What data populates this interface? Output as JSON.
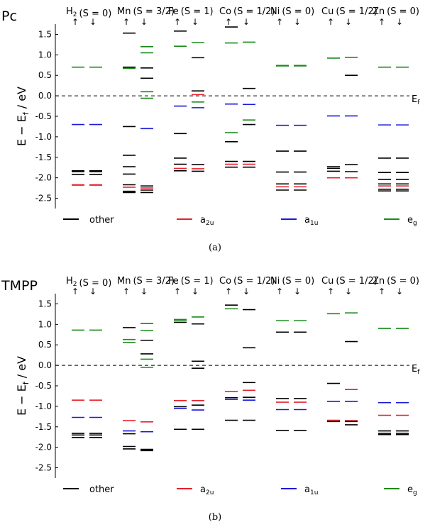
{
  "colors": {
    "other": "#000000",
    "a2u": "#e8202a",
    "a1u": "#1a1ad8",
    "eg": "#1a8a1a"
  },
  "legend": [
    {
      "key": "other",
      "label": "other"
    },
    {
      "key": "a2u",
      "label": "a",
      "sub": "2u"
    },
    {
      "key": "a1u",
      "label": "a",
      "sub": "1u"
    },
    {
      "key": "eg",
      "label": "e",
      "sub": "g"
    }
  ],
  "spin_up": "↑",
  "spin_down": "↓",
  "ef_label": "E",
  "ef_sub": "f",
  "chart_data": [
    {
      "type": "energy-level-diagram",
      "title": "Pc",
      "caption": "(a)",
      "ylabel": "E − E_f / eV",
      "ylim": [
        -2.75,
        1.75
      ],
      "yticks": [
        "-2.5",
        "-2.0",
        "-1.5",
        "-1.0",
        "-0.5",
        "0.0",
        "0.5",
        "1.0",
        "1.5"
      ],
      "fermi_level": 0.0,
      "columns": [
        {
          "metal": "H",
          "metal_sub": "2",
          "spin_label": "S = 0",
          "up": [
            [
              0.7,
              "eg"
            ],
            [
              -0.7,
              "a1u"
            ],
            [
              -1.83,
              "other"
            ],
            [
              -1.85,
              "other"
            ],
            [
              -1.92,
              "other"
            ],
            [
              -2.17,
              "a2u"
            ],
            [
              -2.18,
              "a2u"
            ]
          ],
          "down": [
            [
              0.7,
              "eg"
            ],
            [
              -0.7,
              "a1u"
            ],
            [
              -1.83,
              "other"
            ],
            [
              -1.85,
              "other"
            ],
            [
              -1.92,
              "other"
            ],
            [
              -2.17,
              "a2u"
            ],
            [
              -2.18,
              "a2u"
            ]
          ]
        },
        {
          "metal": "Mn",
          "spin_label": "S = 3/2",
          "up": [
            [
              1.53,
              "other"
            ],
            [
              0.7,
              "other"
            ],
            [
              0.67,
              "eg"
            ],
            [
              -0.75,
              "other"
            ],
            [
              -1.45,
              "other"
            ],
            [
              -1.73,
              "other"
            ],
            [
              -1.91,
              "other"
            ],
            [
              -2.17,
              "other"
            ],
            [
              -2.23,
              "a2u"
            ],
            [
              -2.33,
              "other"
            ],
            [
              -2.36,
              "other"
            ]
          ],
          "down": [
            [
              1.2,
              "eg"
            ],
            [
              1.05,
              "eg"
            ],
            [
              0.68,
              "other"
            ],
            [
              0.43,
              "other"
            ],
            [
              0.1,
              "eg"
            ],
            [
              -0.06,
              "eg"
            ],
            [
              -0.8,
              "a1u"
            ],
            [
              -2.2,
              "other"
            ],
            [
              -2.25,
              "a2u"
            ],
            [
              -2.3,
              "other"
            ],
            [
              -2.36,
              "other"
            ]
          ]
        },
        {
          "metal": "Fe",
          "spin_label": "S = 1",
          "up": [
            [
              1.58,
              "other"
            ],
            [
              1.21,
              "eg"
            ],
            [
              -0.25,
              "a1u"
            ],
            [
              -0.92,
              "other"
            ],
            [
              -1.52,
              "other"
            ],
            [
              -1.67,
              "other"
            ],
            [
              -1.77,
              "a2u"
            ],
            [
              -1.83,
              "other"
            ]
          ],
          "down": [
            [
              1.3,
              "eg"
            ],
            [
              0.93,
              "other"
            ],
            [
              0.12,
              "other"
            ],
            [
              0.03,
              "a2u"
            ],
            [
              -0.15,
              "eg"
            ],
            [
              -0.29,
              "a1u"
            ],
            [
              -1.68,
              "other"
            ],
            [
              -1.78,
              "a2u"
            ],
            [
              -1.84,
              "other"
            ]
          ]
        },
        {
          "metal": "Co",
          "spin_label": "S = 1/2",
          "up": [
            [
              1.68,
              "other"
            ],
            [
              1.29,
              "eg"
            ],
            [
              -0.2,
              "a1u"
            ],
            [
              -0.9,
              "eg"
            ],
            [
              -1.12,
              "other"
            ],
            [
              -1.6,
              "other"
            ],
            [
              -1.67,
              "a2u"
            ],
            [
              -1.74,
              "other"
            ]
          ],
          "down": [
            [
              1.31,
              "eg"
            ],
            [
              0.18,
              "other"
            ],
            [
              -0.21,
              "a1u"
            ],
            [
              -0.59,
              "eg"
            ],
            [
              -0.7,
              "other"
            ],
            [
              -1.6,
              "other"
            ],
            [
              -1.67,
              "a2u"
            ],
            [
              -1.74,
              "other"
            ]
          ]
        },
        {
          "metal": "Ni",
          "spin_label": "S = 0",
          "up": [
            [
              0.74,
              "eg"
            ],
            [
              0.73,
              "eg"
            ],
            [
              -0.72,
              "a1u"
            ],
            [
              -1.35,
              "other"
            ],
            [
              -1.86,
              "other"
            ],
            [
              -2.15,
              "other"
            ],
            [
              -2.22,
              "a2u"
            ],
            [
              -2.3,
              "other"
            ]
          ],
          "down": [
            [
              0.74,
              "eg"
            ],
            [
              0.73,
              "eg"
            ],
            [
              -0.72,
              "a1u"
            ],
            [
              -1.35,
              "other"
            ],
            [
              -1.86,
              "other"
            ],
            [
              -2.15,
              "other"
            ],
            [
              -2.22,
              "a2u"
            ],
            [
              -2.3,
              "other"
            ]
          ]
        },
        {
          "metal": "Cu",
          "spin_label": "S = 1/2",
          "up": [
            [
              0.92,
              "eg"
            ],
            [
              -0.49,
              "a1u"
            ],
            [
              -1.73,
              "other"
            ],
            [
              -1.77,
              "other"
            ],
            [
              -1.84,
              "other"
            ],
            [
              -2.0,
              "a2u"
            ]
          ],
          "down": [
            [
              0.94,
              "eg"
            ],
            [
              0.5,
              "other"
            ],
            [
              -0.49,
              "a1u"
            ],
            [
              -1.68,
              "other"
            ],
            [
              -1.85,
              "other"
            ],
            [
              -2.0,
              "a2u"
            ]
          ]
        },
        {
          "metal": "Zn",
          "spin_label": "S = 0",
          "up": [
            [
              0.7,
              "eg"
            ],
            [
              -0.71,
              "a1u"
            ],
            [
              -1.52,
              "other"
            ],
            [
              -1.87,
              "other"
            ],
            [
              -2.04,
              "other"
            ],
            [
              -2.15,
              "other"
            ],
            [
              -2.2,
              "a2u"
            ],
            [
              -2.28,
              "other"
            ],
            [
              -2.32,
              "other"
            ]
          ],
          "down": [
            [
              0.7,
              "eg"
            ],
            [
              -0.71,
              "a1u"
            ],
            [
              -1.52,
              "other"
            ],
            [
              -1.87,
              "other"
            ],
            [
              -2.04,
              "other"
            ],
            [
              -2.15,
              "other"
            ],
            [
              -2.2,
              "a2u"
            ],
            [
              -2.28,
              "other"
            ],
            [
              -2.32,
              "other"
            ]
          ]
        }
      ]
    },
    {
      "type": "energy-level-diagram",
      "title": "TMPP",
      "caption": "(b)",
      "ylabel": "E − E_f / eV",
      "ylim": [
        -2.75,
        1.75
      ],
      "yticks": [
        "-2.5",
        "-2.0",
        "-1.5",
        "-1.0",
        "-0.5",
        "0.0",
        "0.5",
        "1.0",
        "1.5"
      ],
      "fermi_level": 0.0,
      "columns": [
        {
          "metal": "H",
          "metal_sub": "2",
          "spin_label": "S = 0",
          "up": [
            [
              0.86,
              "eg"
            ],
            [
              -0.85,
              "a2u"
            ],
            [
              -1.27,
              "a1u"
            ],
            [
              -1.66,
              "other"
            ],
            [
              -1.7,
              "other"
            ],
            [
              -1.76,
              "other"
            ]
          ],
          "down": [
            [
              0.86,
              "eg"
            ],
            [
              -0.85,
              "a2u"
            ],
            [
              -1.27,
              "a1u"
            ],
            [
              -1.66,
              "other"
            ],
            [
              -1.7,
              "other"
            ],
            [
              -1.76,
              "other"
            ]
          ]
        },
        {
          "metal": "Mn",
          "spin_label": "S = 3/2",
          "up": [
            [
              0.92,
              "other"
            ],
            [
              0.63,
              "eg"
            ],
            [
              0.56,
              "eg"
            ],
            [
              -1.35,
              "a2u"
            ],
            [
              -1.6,
              "a1u"
            ],
            [
              -1.67,
              "other"
            ],
            [
              -1.98,
              "other"
            ],
            [
              -2.04,
              "other"
            ]
          ],
          "down": [
            [
              1.02,
              "eg"
            ],
            [
              0.85,
              "eg"
            ],
            [
              0.61,
              "other"
            ],
            [
              0.28,
              "other"
            ],
            [
              0.15,
              "eg"
            ],
            [
              -0.05,
              "eg"
            ],
            [
              -1.38,
              "a2u"
            ],
            [
              -1.62,
              "a1u"
            ],
            [
              -2.05,
              "other"
            ],
            [
              -2.08,
              "other"
            ]
          ]
        },
        {
          "metal": "Fe",
          "spin_label": "S = 1",
          "up": [
            [
              1.12,
              "eg"
            ],
            [
              1.1,
              "eg"
            ],
            [
              1.05,
              "other"
            ],
            [
              -0.86,
              "a2u"
            ],
            [
              -1.01,
              "other"
            ],
            [
              -1.05,
              "a1u"
            ],
            [
              -1.56,
              "other"
            ]
          ],
          "down": [
            [
              1.18,
              "eg"
            ],
            [
              1.01,
              "other"
            ],
            [
              0.1,
              "other"
            ],
            [
              -0.07,
              "other"
            ],
            [
              -0.86,
              "a2u"
            ],
            [
              -0.97,
              "other"
            ],
            [
              -1.09,
              "a1u"
            ],
            [
              -1.56,
              "other"
            ]
          ]
        },
        {
          "metal": "Co",
          "spin_label": "S = 1/2",
          "up": [
            [
              1.47,
              "other"
            ],
            [
              1.38,
              "eg"
            ],
            [
              -0.64,
              "a2u"
            ],
            [
              -0.79,
              "other"
            ],
            [
              -0.83,
              "a1u"
            ],
            [
              -1.34,
              "other"
            ]
          ],
          "down": [
            [
              1.36,
              "other"
            ],
            [
              0.43,
              "other"
            ],
            [
              -0.42,
              "other"
            ],
            [
              -0.61,
              "a2u"
            ],
            [
              -0.78,
              "other"
            ],
            [
              -0.85,
              "a1u"
            ],
            [
              -1.34,
              "other"
            ]
          ]
        },
        {
          "metal": "Ni",
          "spin_label": "S = 0",
          "up": [
            [
              1.09,
              "eg"
            ],
            [
              0.81,
              "other"
            ],
            [
              -0.81,
              "other"
            ],
            [
              -0.9,
              "a2u"
            ],
            [
              -1.08,
              "a1u"
            ],
            [
              -1.59,
              "other"
            ]
          ],
          "down": [
            [
              1.09,
              "eg"
            ],
            [
              0.81,
              "other"
            ],
            [
              -0.81,
              "other"
            ],
            [
              -0.9,
              "a2u"
            ],
            [
              -1.08,
              "a1u"
            ],
            [
              -1.59,
              "other"
            ]
          ]
        },
        {
          "metal": "Cu",
          "spin_label": "S = 1/2",
          "up": [
            [
              1.26,
              "eg"
            ],
            [
              -0.44,
              "other"
            ],
            [
              -0.88,
              "a1u"
            ],
            [
              -1.34,
              "a2u"
            ],
            [
              -1.37,
              "other"
            ]
          ],
          "down": [
            [
              1.28,
              "eg"
            ],
            [
              0.58,
              "other"
            ],
            [
              -0.59,
              "a2u"
            ],
            [
              -0.88,
              "a1u"
            ],
            [
              -1.35,
              "a2u"
            ],
            [
              -1.37,
              "other"
            ],
            [
              -1.45,
              "other"
            ]
          ]
        },
        {
          "metal": "Zn",
          "spin_label": "S = 0",
          "up": [
            [
              0.9,
              "eg"
            ],
            [
              -0.91,
              "a1u"
            ],
            [
              -1.22,
              "a2u"
            ],
            [
              -1.6,
              "other"
            ],
            [
              -1.66,
              "other"
            ],
            [
              -1.69,
              "other"
            ]
          ],
          "down": [
            [
              0.9,
              "eg"
            ],
            [
              -0.91,
              "a1u"
            ],
            [
              -1.22,
              "a2u"
            ],
            [
              -1.6,
              "other"
            ],
            [
              -1.66,
              "other"
            ],
            [
              -1.69,
              "other"
            ]
          ]
        }
      ]
    }
  ]
}
